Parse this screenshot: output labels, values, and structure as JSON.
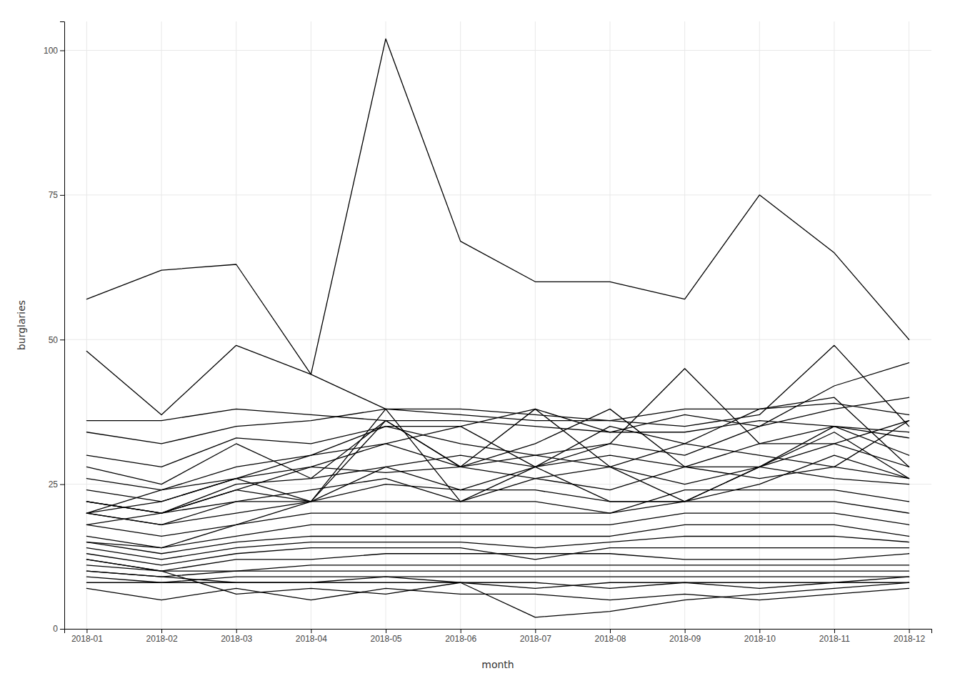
{
  "chart_data": {
    "type": "line",
    "xlabel": "month",
    "ylabel": "burglaries",
    "categories": [
      "2018-01",
      "2018-02",
      "2018-03",
      "2018-04",
      "2018-05",
      "2018-06",
      "2018-07",
      "2018-08",
      "2018-09",
      "2018-10",
      "2018-11",
      "2018-12"
    ],
    "series": [
      {
        "values": [
          57,
          62,
          63,
          44,
          102,
          67,
          60,
          60,
          57,
          75,
          65,
          50
        ]
      },
      {
        "values": [
          48,
          37,
          49,
          44,
          38,
          38,
          37,
          36,
          35,
          37,
          49,
          35
        ]
      },
      {
        "values": [
          36,
          36,
          38,
          37,
          36,
          36,
          35,
          34,
          34,
          36,
          35,
          34
        ]
      },
      {
        "values": [
          34,
          32,
          35,
          36,
          38,
          37,
          36,
          36,
          38,
          38,
          39,
          37
        ]
      },
      {
        "values": [
          30,
          28,
          33,
          32,
          35,
          35,
          38,
          34,
          37,
          35,
          38,
          40
        ]
      },
      {
        "values": [
          28,
          25,
          32,
          26,
          36,
          28,
          30,
          32,
          45,
          32,
          35,
          33
        ]
      },
      {
        "values": [
          24,
          22,
          26,
          30,
          32,
          35,
          28,
          35,
          32,
          38,
          40,
          28
        ]
      },
      {
        "values": [
          22,
          20,
          24,
          28,
          27,
          28,
          38,
          28,
          32,
          30,
          28,
          36
        ]
      },
      {
        "values": [
          20,
          22,
          26,
          22,
          36,
          28,
          32,
          38,
          28,
          28,
          32,
          36
        ]
      },
      {
        "values": [
          26,
          24,
          28,
          30,
          35,
          32,
          30,
          28,
          25,
          28,
          35,
          30
        ]
      },
      {
        "values": [
          22,
          20,
          25,
          26,
          28,
          30,
          28,
          30,
          28,
          32,
          32,
          28
        ]
      },
      {
        "values": [
          20,
          18,
          22,
          24,
          26,
          22,
          26,
          24,
          28,
          26,
          28,
          26
        ]
      },
      {
        "values": [
          18,
          20,
          22,
          22,
          25,
          24,
          24,
          22,
          22,
          28,
          26,
          25
        ]
      },
      {
        "values": [
          20,
          18,
          20,
          22,
          22,
          22,
          22,
          20,
          24,
          24,
          24,
          22
        ]
      },
      {
        "values": [
          18,
          16,
          18,
          20,
          20,
          20,
          20,
          20,
          22,
          22,
          22,
          20
        ]
      },
      {
        "values": [
          16,
          14,
          16,
          18,
          18,
          18,
          18,
          18,
          20,
          20,
          20,
          18
        ]
      },
      {
        "values": [
          15,
          13,
          15,
          16,
          16,
          16,
          16,
          16,
          18,
          18,
          18,
          16
        ]
      },
      {
        "values": [
          14,
          12,
          14,
          15,
          15,
          15,
          14,
          15,
          16,
          16,
          16,
          15
        ]
      },
      {
        "values": [
          13,
          11,
          13,
          14,
          14,
          14,
          12,
          14,
          14,
          14,
          14,
          14
        ]
      },
      {
        "values": [
          12,
          10,
          12,
          12,
          13,
          13,
          13,
          13,
          12,
          12,
          12,
          13
        ]
      },
      {
        "values": [
          11,
          10,
          10,
          11,
          11,
          11,
          11,
          11,
          11,
          11,
          11,
          11
        ]
      },
      {
        "values": [
          10,
          9,
          10,
          10,
          10,
          10,
          10,
          10,
          10,
          10,
          10,
          10
        ]
      },
      {
        "values": [
          9,
          8,
          9,
          9,
          9,
          9,
          9,
          9,
          9,
          9,
          9,
          9
        ]
      },
      {
        "values": [
          8,
          8,
          8,
          8,
          8,
          8,
          7,
          8,
          8,
          8,
          8,
          8
        ]
      },
      {
        "values": [
          10,
          9,
          8,
          8,
          9,
          8,
          2,
          3,
          5,
          6,
          7,
          8
        ]
      },
      {
        "values": [
          12,
          10,
          6,
          7,
          6,
          8,
          8,
          7,
          8,
          7,
          8,
          9
        ]
      },
      {
        "values": [
          7,
          5,
          7,
          5,
          7,
          6,
          6,
          5,
          6,
          5,
          6,
          7
        ]
      },
      {
        "values": [
          20,
          24,
          26,
          28,
          32,
          28,
          26,
          28,
          22,
          25,
          30,
          26
        ]
      },
      {
        "values": [
          15,
          14,
          18,
          22,
          28,
          24,
          28,
          32,
          30,
          35,
          42,
          46
        ]
      },
      {
        "values": [
          22,
          20,
          24,
          22,
          38,
          22,
          28,
          22,
          22,
          28,
          34,
          26
        ]
      }
    ],
    "color": "#000000",
    "ylim": [
      0,
      105
    ],
    "yticks": [
      0,
      25,
      50,
      75,
      100
    ],
    "grid": true
  }
}
